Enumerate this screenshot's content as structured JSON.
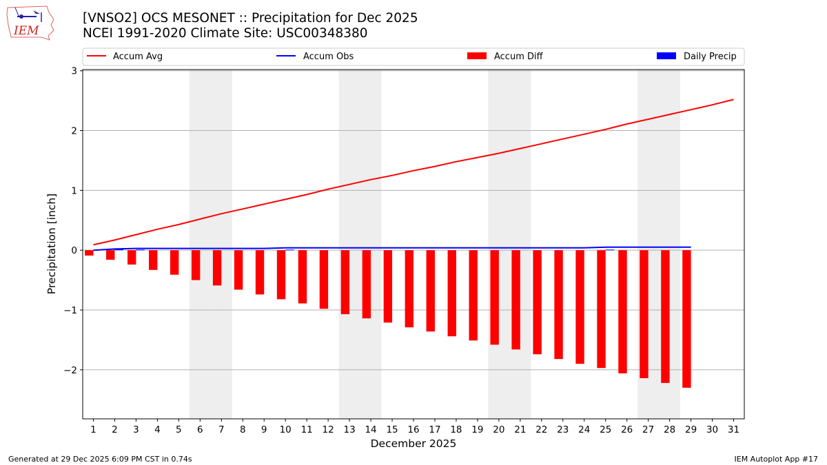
{
  "header": {
    "title_line1": "[VNSO2] OCS MESONET :: Precipitation for Dec 2025",
    "title_line2": "NCEI 1991-2020 Climate Site: USC00348380"
  },
  "logo": {
    "text": "IEM",
    "icon": "iem-iowa-logo"
  },
  "footer": {
    "left": "Generated at 29 Dec 2025 6:09 PM CST in 0.74s",
    "right": "IEM Autoplot App #17"
  },
  "colors": {
    "avg": "#ff0000",
    "obs": "#0000ff",
    "diff": "#ff0000",
    "daily": "#0000ff",
    "weekend": "#eeeeee",
    "grid": "#b0b0b0"
  },
  "chart_data": {
    "type": "bar",
    "xlabel": "December 2025",
    "ylabel": "Precipitation [inch]",
    "ylim": [
      -2.82,
      3.02
    ],
    "xlim": [
      0.5,
      31.5
    ],
    "yticks": [
      -2,
      -1,
      0,
      1,
      2,
      3
    ],
    "ytick_labels": [
      "−2",
      "−1",
      "0",
      "1",
      "2",
      "3"
    ],
    "days": [
      1,
      2,
      3,
      4,
      5,
      6,
      7,
      8,
      9,
      10,
      11,
      12,
      13,
      14,
      15,
      16,
      17,
      18,
      19,
      20,
      21,
      22,
      23,
      24,
      25,
      26,
      27,
      28,
      29,
      30,
      31
    ],
    "grid": true,
    "legend_position": "top",
    "weekend_days": [
      6,
      7,
      13,
      14,
      20,
      21,
      27,
      28
    ],
    "series": [
      {
        "name": "Accum Avg",
        "kind": "line",
        "values": [
          0.09,
          0.17,
          0.26,
          0.35,
          0.43,
          0.52,
          0.61,
          0.69,
          0.77,
          0.85,
          0.93,
          1.02,
          1.1,
          1.18,
          1.25,
          1.33,
          1.4,
          1.48,
          1.55,
          1.62,
          1.7,
          1.78,
          1.86,
          1.94,
          2.02,
          2.11,
          2.19,
          2.27,
          2.35,
          2.43,
          2.52
        ]
      },
      {
        "name": "Accum Obs",
        "kind": "line",
        "values": [
          0.0,
          0.02,
          0.03,
          0.03,
          0.03,
          0.03,
          0.03,
          0.03,
          0.03,
          0.04,
          0.04,
          0.04,
          0.04,
          0.04,
          0.04,
          0.04,
          0.04,
          0.04,
          0.04,
          0.04,
          0.04,
          0.04,
          0.04,
          0.04,
          0.05,
          0.05,
          0.05,
          0.05,
          0.05
        ]
      },
      {
        "name": "Accum Diff",
        "kind": "bar",
        "values": [
          -0.09,
          -0.16,
          -0.24,
          -0.33,
          -0.41,
          -0.5,
          -0.59,
          -0.66,
          -0.74,
          -0.82,
          -0.89,
          -0.98,
          -1.07,
          -1.14,
          -1.21,
          -1.29,
          -1.36,
          -1.44,
          -1.51,
          -1.58,
          -1.66,
          -1.74,
          -1.82,
          -1.9,
          -1.97,
          -2.06,
          -2.14,
          -2.22,
          -2.3
        ]
      },
      {
        "name": "Daily Precip",
        "kind": "bar",
        "values": [
          0.0,
          0.02,
          0.01,
          0.0,
          0.0,
          0.0,
          0.0,
          0.0,
          0.0,
          0.01,
          0.0,
          0.0,
          0.0,
          0.0,
          0.0,
          0.0,
          0.0,
          0.0,
          0.0,
          0.0,
          0.0,
          0.0,
          0.0,
          0.0,
          0.01,
          0.0,
          0.0,
          0.0,
          0.0
        ]
      }
    ]
  }
}
